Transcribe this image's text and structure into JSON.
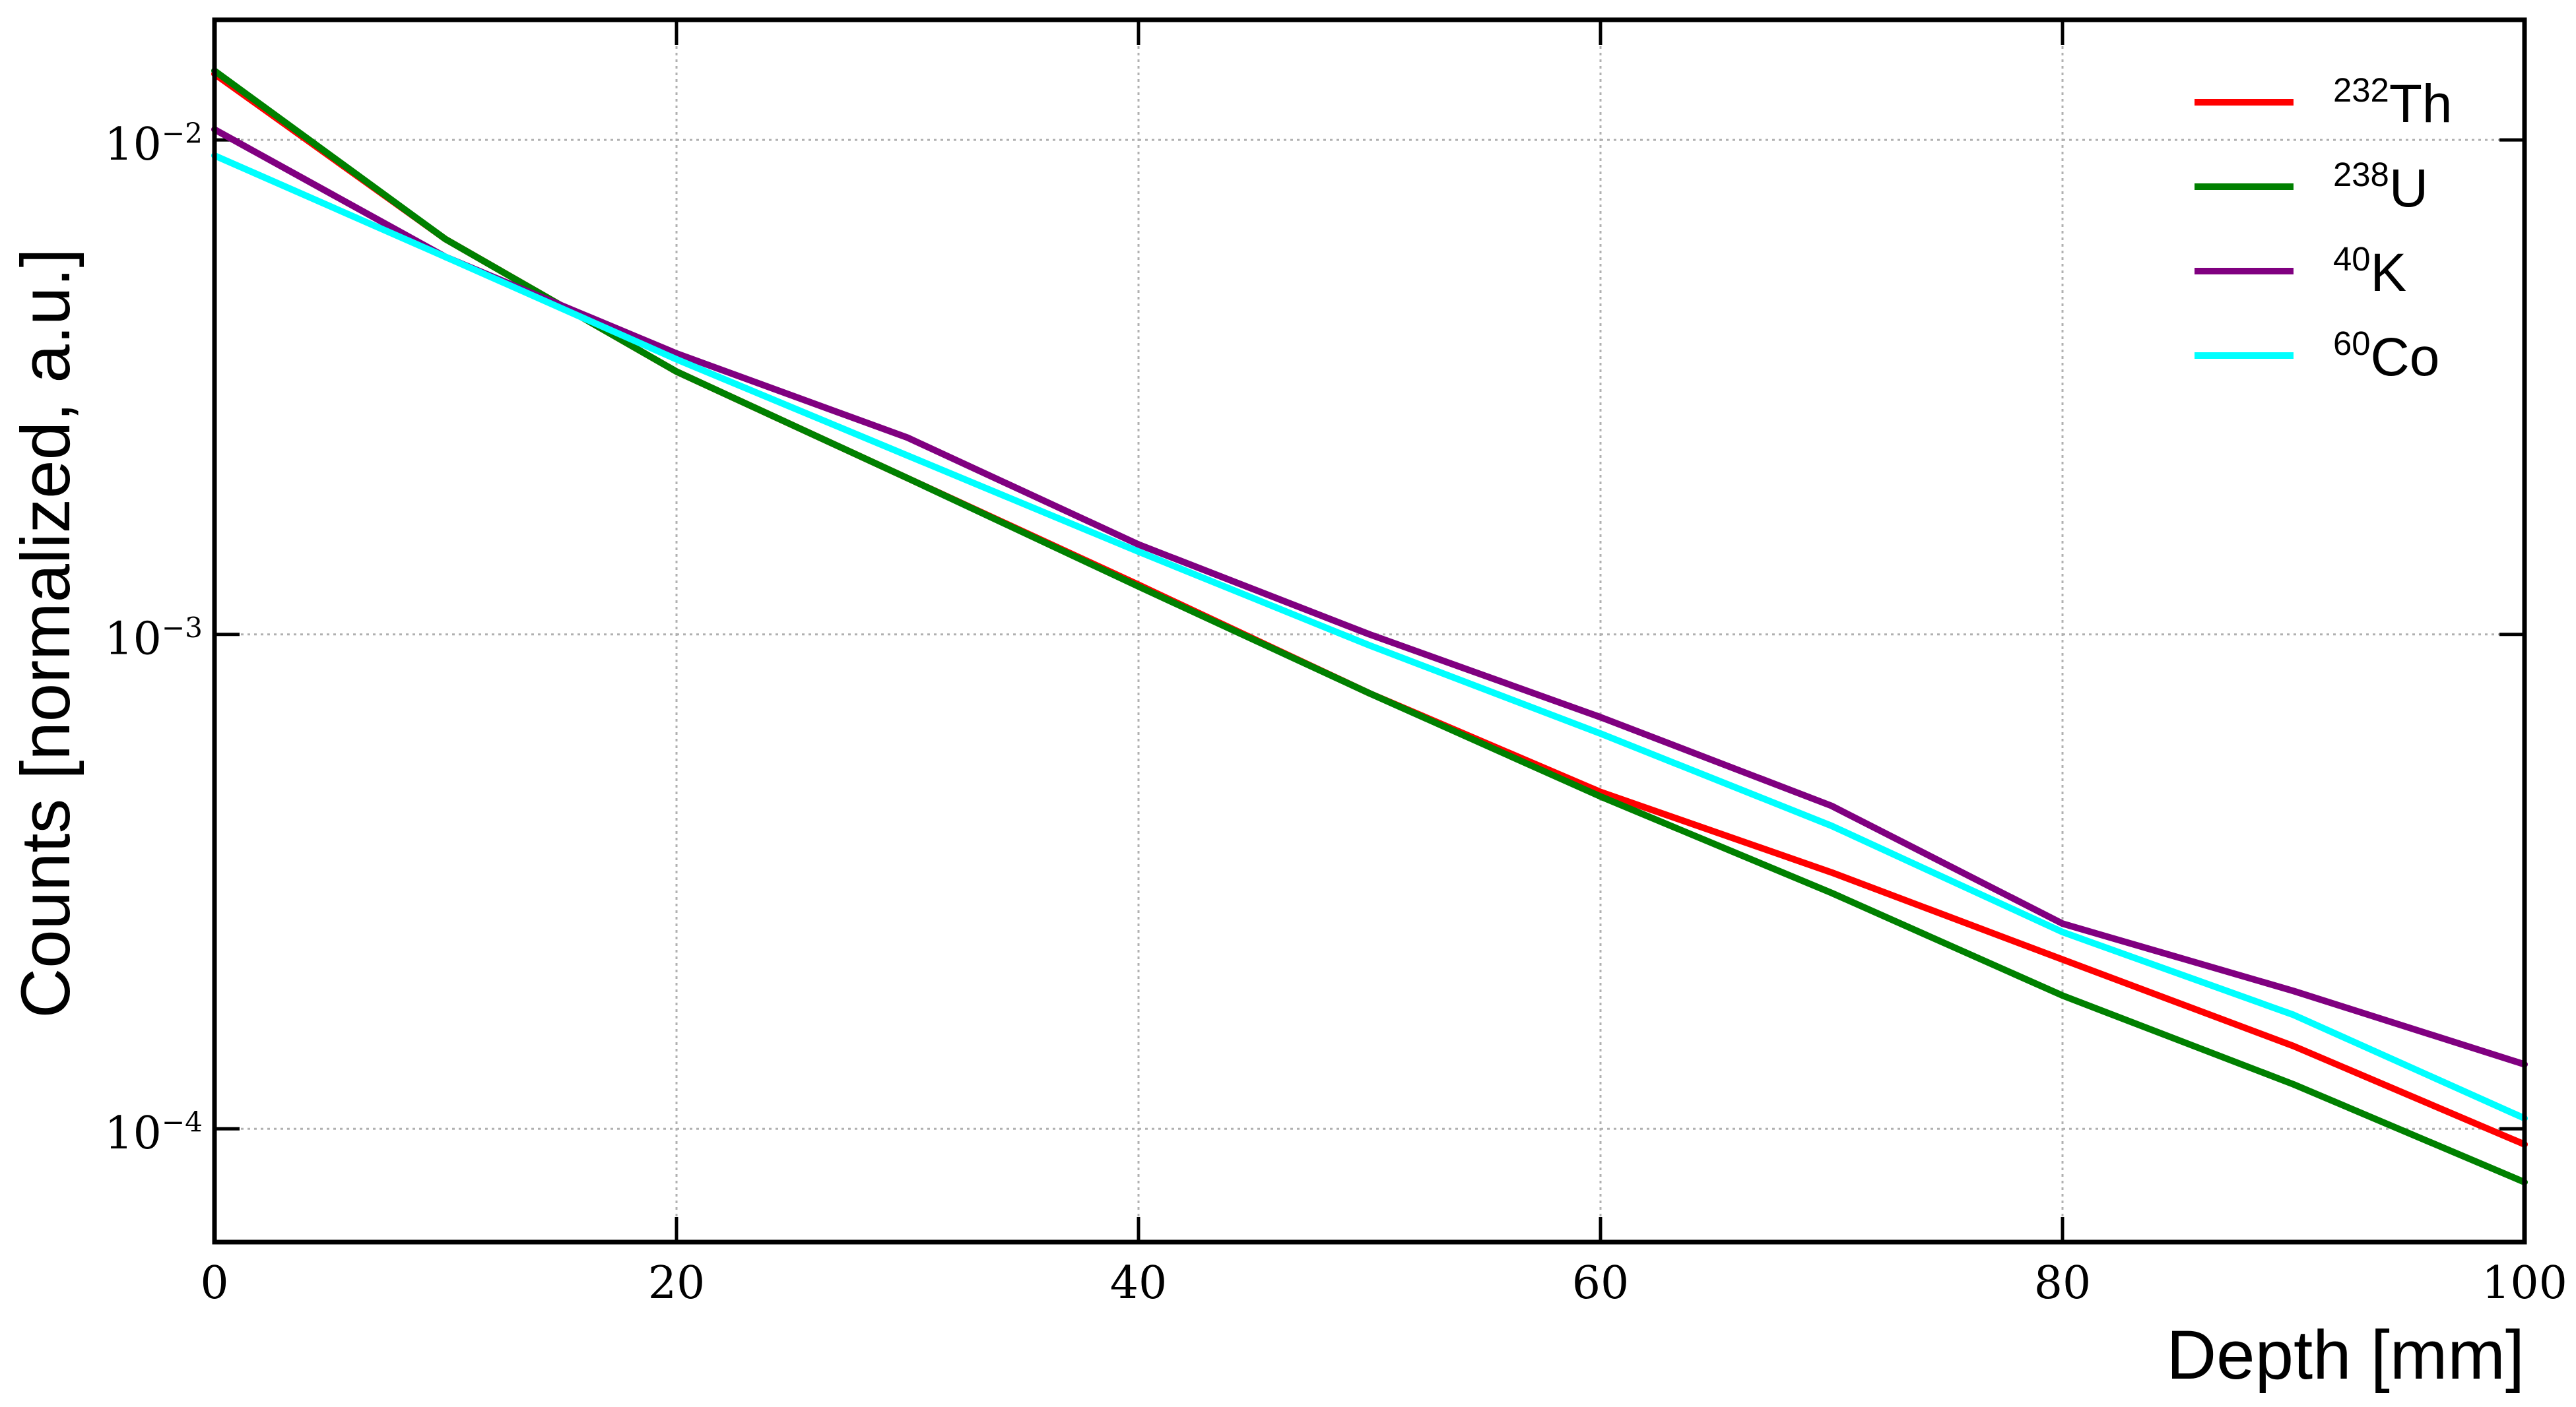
{
  "chart_data": {
    "type": "line",
    "x_label": "Depth [mm]",
    "y_label": "Counts [normalized, a.u.]",
    "x": [
      0,
      10,
      20,
      30,
      40,
      50,
      60,
      70,
      80,
      90,
      100
    ],
    "series": [
      {
        "name": "^232Th",
        "color": "#ff0000",
        "values": [
          0.0136,
          0.0063,
          0.0034,
          0.00207,
          0.00126,
          0.00076,
          0.00048,
          0.00033,
          0.00022,
          0.000147,
          9.3e-05
        ]
      },
      {
        "name": "^238U",
        "color": "#008000",
        "values": [
          0.0138,
          0.0063,
          0.0034,
          0.00207,
          0.00125,
          0.00076,
          0.00047,
          0.0003,
          0.000186,
          0.000123,
          7.8e-05
        ]
      },
      {
        "name": "^40K",
        "color": "#800080",
        "values": [
          0.0105,
          0.0058,
          0.0037,
          0.0025,
          0.00152,
          0.001,
          0.00068,
          0.00045,
          0.00026,
          0.00019,
          0.000135
        ]
      },
      {
        "name": "^60Co",
        "color": "#00ffff",
        "values": [
          0.0093,
          0.0058,
          0.0036,
          0.0023,
          0.00147,
          0.00095,
          0.00063,
          0.00041,
          0.00025,
          0.00017,
          0.000105
        ]
      }
    ],
    "xlim": [
      0,
      100
    ],
    "xticks": [
      0,
      20,
      40,
      60,
      80,
      100
    ],
    "ylim": [
      5.9e-05,
      0.0175
    ],
    "ylog": true,
    "yticks": [
      {
        "value": 0.0001,
        "label": "10^−4"
      },
      {
        "value": 0.001,
        "label": "10^−3"
      },
      {
        "value": 0.01,
        "label": "10^−2"
      }
    ],
    "grid": true,
    "legend": "upper right"
  }
}
